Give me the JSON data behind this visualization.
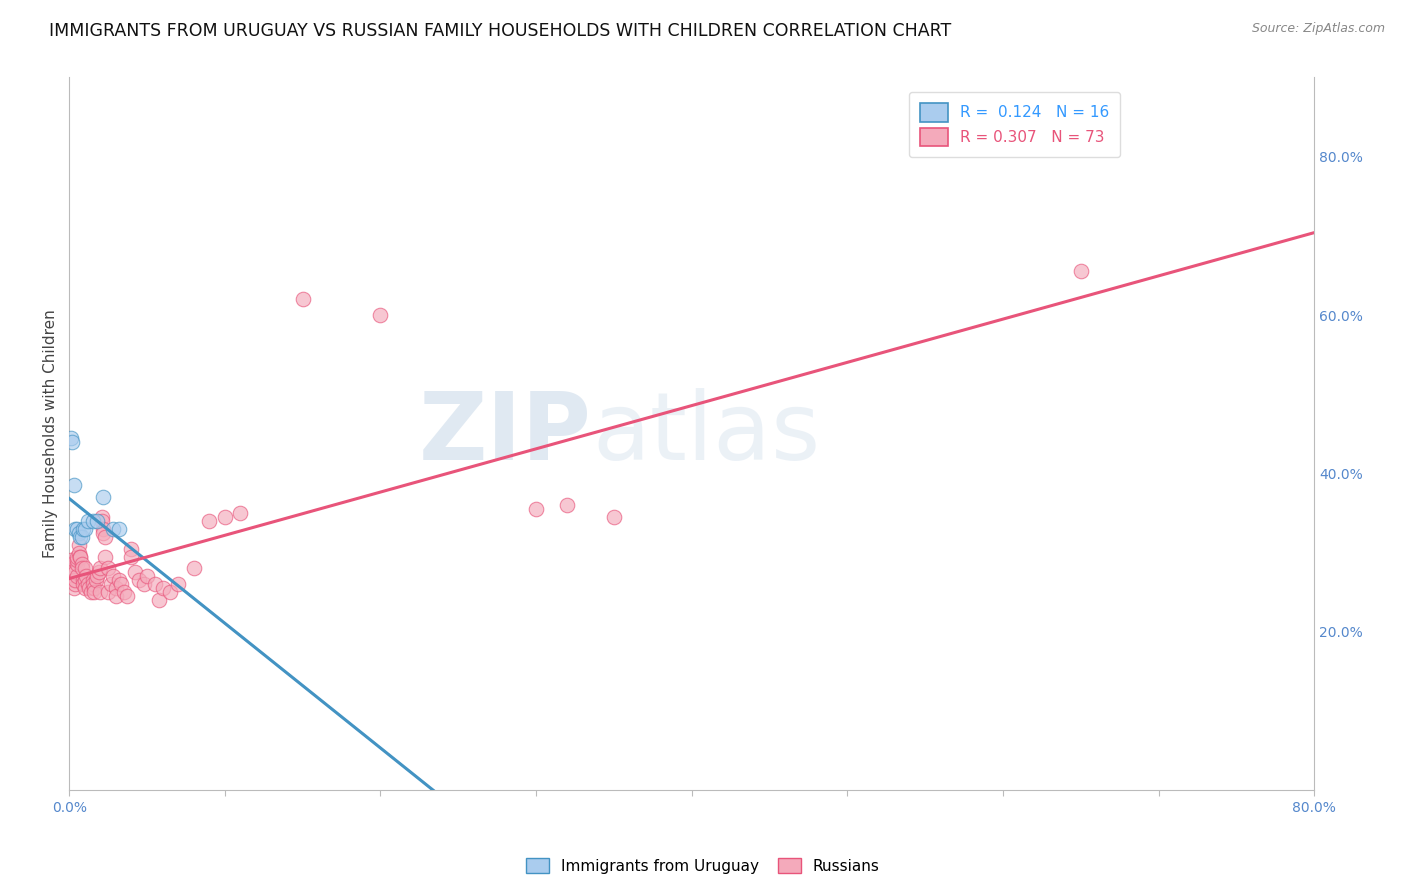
{
  "title": "IMMIGRANTS FROM URUGUAY VS RUSSIAN FAMILY HOUSEHOLDS WITH CHILDREN CORRELATION CHART",
  "source_text": "Source: ZipAtlas.com",
  "ylabel": "Family Households with Children",
  "xlim": [
    0.0,
    0.8
  ],
  "ylim": [
    0.0,
    0.9
  ],
  "x_ticks": [
    0.0,
    0.1,
    0.2,
    0.3,
    0.4,
    0.5,
    0.6,
    0.7,
    0.8
  ],
  "x_tick_labels": [
    "0.0%",
    "",
    "",
    "",
    "",
    "",
    "",
    "",
    "80.0%"
  ],
  "y_ticks_right": [
    0.2,
    0.4,
    0.6,
    0.8
  ],
  "y_tick_labels_right": [
    "20.0%",
    "40.0%",
    "60.0%",
    "80.0%"
  ],
  "legend_entries": [
    {
      "label": "R =  0.124   N = 16"
    },
    {
      "label": "R = 0.307   N = 73"
    }
  ],
  "background_color": "#ffffff",
  "grid_color": "#cccccc",
  "watermark_zip": "ZIP",
  "watermark_atlas": "atlas",
  "uruguay_scatter": [
    [
      0.001,
      0.445
    ],
    [
      0.002,
      0.44
    ],
    [
      0.003,
      0.385
    ],
    [
      0.004,
      0.33
    ],
    [
      0.005,
      0.33
    ],
    [
      0.006,
      0.325
    ],
    [
      0.007,
      0.32
    ],
    [
      0.008,
      0.32
    ],
    [
      0.009,
      0.33
    ],
    [
      0.01,
      0.33
    ],
    [
      0.012,
      0.34
    ],
    [
      0.015,
      0.34
    ],
    [
      0.018,
      0.34
    ],
    [
      0.022,
      0.37
    ],
    [
      0.028,
      0.33
    ],
    [
      0.032,
      0.33
    ]
  ],
  "russian_scatter": [
    [
      0.001,
      0.29
    ],
    [
      0.002,
      0.285
    ],
    [
      0.002,
      0.275
    ],
    [
      0.003,
      0.265
    ],
    [
      0.003,
      0.255
    ],
    [
      0.004,
      0.26
    ],
    [
      0.004,
      0.265
    ],
    [
      0.004,
      0.275
    ],
    [
      0.005,
      0.27
    ],
    [
      0.005,
      0.285
    ],
    [
      0.005,
      0.29
    ],
    [
      0.005,
      0.295
    ],
    [
      0.006,
      0.31
    ],
    [
      0.006,
      0.3
    ],
    [
      0.007,
      0.295
    ],
    [
      0.007,
      0.295
    ],
    [
      0.008,
      0.285
    ],
    [
      0.008,
      0.28
    ],
    [
      0.009,
      0.265
    ],
    [
      0.009,
      0.26
    ],
    [
      0.01,
      0.265
    ],
    [
      0.01,
      0.255
    ],
    [
      0.01,
      0.28
    ],
    [
      0.011,
      0.27
    ],
    [
      0.012,
      0.26
    ],
    [
      0.013,
      0.255
    ],
    [
      0.014,
      0.25
    ],
    [
      0.015,
      0.265
    ],
    [
      0.015,
      0.26
    ],
    [
      0.016,
      0.255
    ],
    [
      0.016,
      0.25
    ],
    [
      0.017,
      0.265
    ],
    [
      0.018,
      0.27
    ],
    [
      0.019,
      0.275
    ],
    [
      0.02,
      0.28
    ],
    [
      0.02,
      0.25
    ],
    [
      0.021,
      0.345
    ],
    [
      0.021,
      0.34
    ],
    [
      0.022,
      0.33
    ],
    [
      0.022,
      0.325
    ],
    [
      0.023,
      0.32
    ],
    [
      0.023,
      0.295
    ],
    [
      0.025,
      0.28
    ],
    [
      0.025,
      0.25
    ],
    [
      0.027,
      0.26
    ],
    [
      0.028,
      0.27
    ],
    [
      0.03,
      0.255
    ],
    [
      0.03,
      0.245
    ],
    [
      0.032,
      0.265
    ],
    [
      0.033,
      0.26
    ],
    [
      0.035,
      0.25
    ],
    [
      0.037,
      0.245
    ],
    [
      0.04,
      0.305
    ],
    [
      0.04,
      0.295
    ],
    [
      0.042,
      0.275
    ],
    [
      0.045,
      0.265
    ],
    [
      0.048,
      0.26
    ],
    [
      0.05,
      0.27
    ],
    [
      0.055,
      0.26
    ],
    [
      0.058,
      0.24
    ],
    [
      0.06,
      0.255
    ],
    [
      0.065,
      0.25
    ],
    [
      0.07,
      0.26
    ],
    [
      0.08,
      0.28
    ],
    [
      0.09,
      0.34
    ],
    [
      0.1,
      0.345
    ],
    [
      0.11,
      0.35
    ],
    [
      0.15,
      0.62
    ],
    [
      0.2,
      0.6
    ],
    [
      0.3,
      0.355
    ],
    [
      0.32,
      0.36
    ],
    [
      0.35,
      0.345
    ],
    [
      0.65,
      0.655
    ]
  ],
  "uruguay_line_color": "#4393c3",
  "russian_line_color": "#e8547a",
  "scatter_blue": "#aaccee",
  "scatter_pink": "#f4aabb",
  "title_fontsize": 12.5,
  "axis_label_fontsize": 11,
  "tick_fontsize": 10,
  "legend_fontsize": 11,
  "legend_text_blue": "#3399ff",
  "legend_text_pink": "#e8547a"
}
